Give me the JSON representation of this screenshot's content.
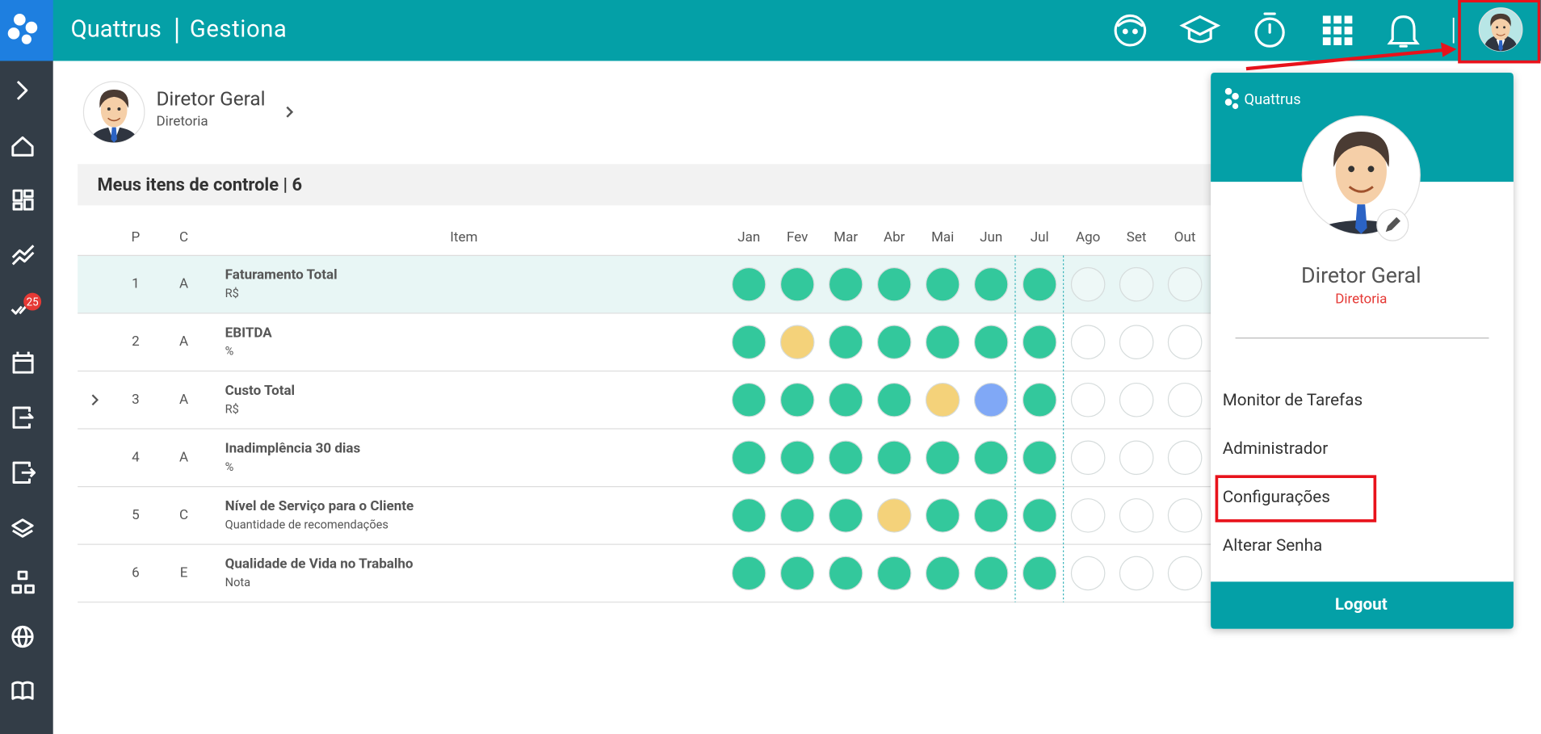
{
  "header": {
    "brand": "Quattrus",
    "product": "Gestiona"
  },
  "sidebar": {
    "badge": "25"
  },
  "profile": {
    "name": "Diretor Geral",
    "role": "Diretoria"
  },
  "section": {
    "title": "Meus itens de controle | 6"
  },
  "table": {
    "columns": [
      "P",
      "C",
      "Item"
    ],
    "months": [
      "Jan",
      "Fev",
      "Mar",
      "Abr",
      "Mai",
      "Jun",
      "Jul",
      "Ago",
      "Set",
      "Out"
    ],
    "rows": [
      {
        "p": 1,
        "c": "A",
        "item": "Faturamento Total",
        "unit": "R$",
        "status": [
          "#33c89c",
          "#33c89c",
          "#33c89c",
          "#33c89c",
          "#33c89c",
          "#33c89c",
          "#33c89c",
          "#eef8f7",
          "#eef8f7",
          "#eef8f7"
        ]
      },
      {
        "p": 2,
        "c": "A",
        "item": "EBITDA",
        "unit": "%",
        "status": [
          "#33c89c",
          "#f4d27a",
          "#33c89c",
          "#33c89c",
          "#33c89c",
          "#33c89c",
          "#33c89c",
          "#ffffff",
          "#ffffff",
          "#ffffff"
        ]
      },
      {
        "p": 3,
        "c": "A",
        "item": "Custo Total",
        "unit": "R$",
        "status": [
          "#33c89c",
          "#33c89c",
          "#33c89c",
          "#33c89c",
          "#f4d27a",
          "#80a8f6",
          "#33c89c",
          "#ffffff",
          "#ffffff",
          "#ffffff"
        ]
      },
      {
        "p": 4,
        "c": "A",
        "item": "Inadimplência 30 dias",
        "unit": "%",
        "status": [
          "#33c89c",
          "#33c89c",
          "#33c89c",
          "#33c89c",
          "#33c89c",
          "#33c89c",
          "#33c89c",
          "#ffffff",
          "#ffffff",
          "#ffffff"
        ]
      },
      {
        "p": 5,
        "c": "C",
        "item": "Nível de Serviço para o Cliente",
        "unit": "Quantidade de recomendações",
        "status": [
          "#33c89c",
          "#33c89c",
          "#33c89c",
          "#f4d27a",
          "#33c89c",
          "#33c89c",
          "#33c89c",
          "#ffffff",
          "#ffffff",
          "#ffffff"
        ]
      },
      {
        "p": 6,
        "c": "E",
        "item": "Qualidade de Vida no Trabalho",
        "unit": "Nota",
        "status": [
          "#33c89c",
          "#33c89c",
          "#33c89c",
          "#33c89c",
          "#33c89c",
          "#33c89c",
          "#33c89c",
          "#ffffff",
          "#ffffff",
          "#ffffff"
        ]
      }
    ]
  },
  "menu": {
    "logo": "Quattrus",
    "name": "Diretor Geral",
    "role": "Diretoria",
    "items": [
      "Monitor de Tarefas",
      "Administrador",
      "Configurações",
      "Alterar Senha"
    ],
    "logout": "Logout"
  }
}
